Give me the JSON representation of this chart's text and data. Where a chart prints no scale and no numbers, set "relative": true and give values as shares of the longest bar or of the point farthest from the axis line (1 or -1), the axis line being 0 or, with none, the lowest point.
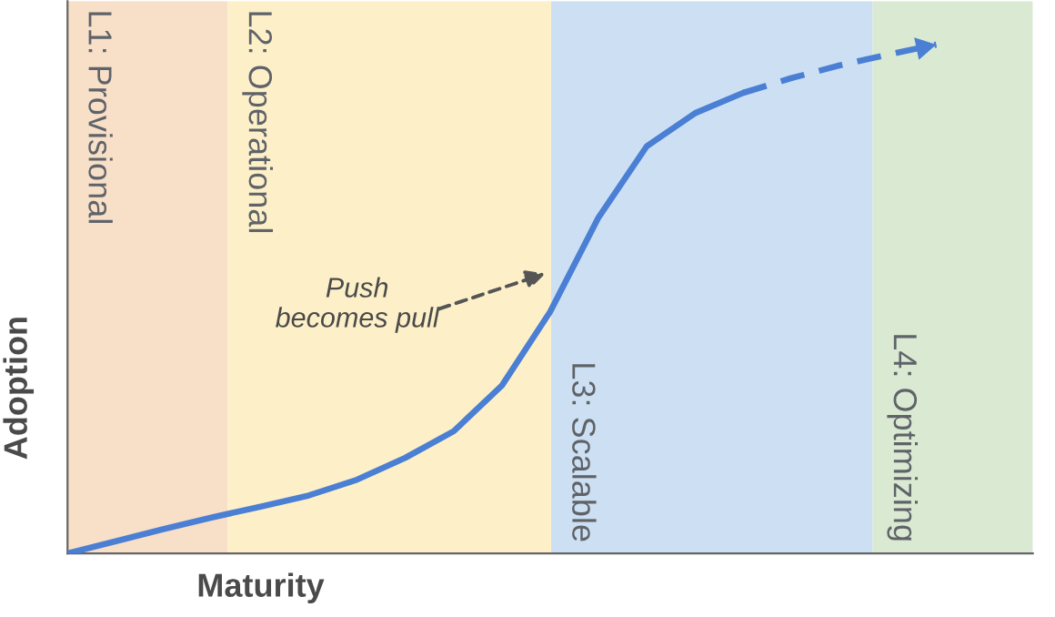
{
  "chart_data": {
    "type": "line",
    "relative": true,
    "xlabel": "Maturity",
    "ylabel": "Adoption",
    "categories": [
      null,
      null,
      null,
      null,
      null,
      null,
      null,
      null,
      null,
      null,
      null,
      null,
      null,
      null,
      null,
      null,
      null,
      null,
      null
    ],
    "series": [
      {
        "color": "#4a7fd4",
        "line_style": "solid",
        "values": [
          0,
          0.024,
          0.048,
          0.071,
          0.092,
          0.114,
          0.145,
          0.188,
          0.24,
          0.33,
          0.475,
          0.66,
          0.8,
          0.865,
          0.905,
          null,
          null,
          null,
          null
        ]
      },
      {
        "color": "#4a7fd4",
        "line_style": "dashed",
        "values": [
          null,
          null,
          null,
          null,
          null,
          null,
          null,
          null,
          null,
          null,
          null,
          null,
          null,
          null,
          0.905,
          0.934,
          0.959,
          0.98,
          1
        ]
      }
    ],
    "annotations": [
      "Push\nbecomes pull",
      "L1: Provisional",
      "L2: Operational",
      "L3: Scalable",
      "L4: Optimizing"
    ],
    "legend": false
  }
}
